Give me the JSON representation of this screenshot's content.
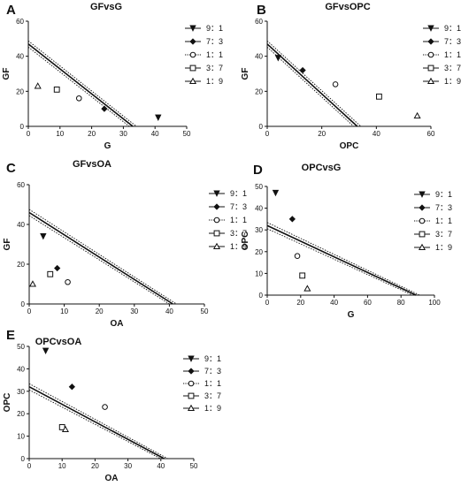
{
  "chart_data": [
    {
      "type": "scatter",
      "panel": "A",
      "title": "GFvsG",
      "xlabel": "G",
      "ylabel": "GF",
      "xlim": [
        0,
        50
      ],
      "ylim": [
        0,
        60
      ],
      "xticks": [
        0,
        10,
        20,
        30,
        40,
        50
      ],
      "yticks": [
        0,
        20,
        40,
        60
      ],
      "line": {
        "x": [
          0,
          33
        ],
        "y": [
          47,
          0
        ]
      },
      "series": [
        {
          "name": "9：1",
          "marker": "triangle-down",
          "x": [
            41
          ],
          "y": [
            5
          ]
        },
        {
          "name": "7：3",
          "marker": "diamond",
          "x": [
            24
          ],
          "y": [
            10
          ]
        },
        {
          "name": "1：1",
          "marker": "circle-open",
          "x": [
            16
          ],
          "y": [
            16
          ]
        },
        {
          "name": "3：7",
          "marker": "square-open",
          "x": [
            9
          ],
          "y": [
            21
          ]
        },
        {
          "name": "1：9",
          "marker": "triangle-open",
          "x": [
            3
          ],
          "y": [
            23
          ]
        }
      ]
    },
    {
      "type": "scatter",
      "panel": "B",
      "title": "GFvsOPC",
      "xlabel": "OPC",
      "ylabel": "GF",
      "xlim": [
        0,
        60
      ],
      "ylim": [
        0,
        60
      ],
      "xticks": [
        0,
        20,
        40,
        60
      ],
      "yticks": [
        0,
        20,
        40,
        60
      ],
      "line": {
        "x": [
          0,
          33
        ],
        "y": [
          47,
          0
        ]
      },
      "series": [
        {
          "name": "9：1",
          "marker": "triangle-down",
          "x": [
            4
          ],
          "y": [
            39
          ]
        },
        {
          "name": "7：3",
          "marker": "diamond",
          "x": [
            13
          ],
          "y": [
            32
          ]
        },
        {
          "name": "1：1",
          "marker": "circle-open",
          "x": [
            25
          ],
          "y": [
            24
          ]
        },
        {
          "name": "3：7",
          "marker": "square-open",
          "x": [
            41
          ],
          "y": [
            17
          ]
        },
        {
          "name": "1：9",
          "marker": "triangle-open",
          "x": [
            55
          ],
          "y": [
            6
          ]
        }
      ]
    },
    {
      "type": "scatter",
      "panel": "C",
      "title": "GFvsOA",
      "xlabel": "OA",
      "ylabel": "GF",
      "xlim": [
        0,
        50
      ],
      "ylim": [
        0,
        60
      ],
      "xticks": [
        0,
        10,
        20,
        30,
        40,
        50
      ],
      "yticks": [
        0,
        20,
        40,
        60
      ],
      "line": {
        "x": [
          0,
          41
        ],
        "y": [
          46,
          0
        ]
      },
      "series": [
        {
          "name": "9：1",
          "marker": "triangle-down",
          "x": [
            4
          ],
          "y": [
            34
          ]
        },
        {
          "name": "7：3",
          "marker": "diamond",
          "x": [
            8
          ],
          "y": [
            18
          ]
        },
        {
          "name": "1：1",
          "marker": "circle-open",
          "x": [
            11
          ],
          "y": [
            11
          ]
        },
        {
          "name": "3：7",
          "marker": "square-open",
          "x": [
            6
          ],
          "y": [
            15
          ]
        },
        {
          "name": "1：9",
          "marker": "triangle-open",
          "x": [
            1
          ],
          "y": [
            10
          ]
        }
      ]
    },
    {
      "type": "scatter",
      "panel": "D",
      "title": "OPCvsG",
      "xlabel": "G",
      "ylabel": "OPC",
      "xlim": [
        0,
        100
      ],
      "ylim": [
        0,
        50
      ],
      "xticks": [
        0,
        20,
        40,
        60,
        80,
        100
      ],
      "yticks": [
        0,
        10,
        20,
        30,
        40,
        50
      ],
      "line": {
        "x": [
          0,
          89
        ],
        "y": [
          32,
          0
        ]
      },
      "series": [
        {
          "name": "9：1",
          "marker": "triangle-down",
          "x": [
            5
          ],
          "y": [
            47
          ]
        },
        {
          "name": "7：3",
          "marker": "diamond",
          "x": [
            15
          ],
          "y": [
            35
          ]
        },
        {
          "name": "1：1",
          "marker": "circle-open",
          "x": [
            18
          ],
          "y": [
            18
          ]
        },
        {
          "name": "3：7",
          "marker": "square-open",
          "x": [
            21
          ],
          "y": [
            9
          ]
        },
        {
          "name": "1：9",
          "marker": "triangle-open",
          "x": [
            24
          ],
          "y": [
            3
          ]
        }
      ]
    },
    {
      "type": "scatter",
      "panel": "E",
      "title": "OPCvsOA",
      "xlabel": "OA",
      "ylabel": "OPC",
      "xlim": [
        0,
        50
      ],
      "ylim": [
        0,
        50
      ],
      "xticks": [
        0,
        10,
        20,
        30,
        40,
        50
      ],
      "yticks": [
        0,
        10,
        20,
        30,
        40,
        50
      ],
      "line": {
        "x": [
          0,
          41
        ],
        "y": [
          32,
          0
        ]
      },
      "series": [
        {
          "name": "9：1",
          "marker": "triangle-down",
          "x": [
            5
          ],
          "y": [
            48
          ]
        },
        {
          "name": "7：3",
          "marker": "diamond",
          "x": [
            13
          ],
          "y": [
            32
          ]
        },
        {
          "name": "1：1",
          "marker": "circle-open",
          "x": [
            23
          ],
          "y": [
            23
          ]
        },
        {
          "name": "3：7",
          "marker": "square-open",
          "x": [
            10
          ],
          "y": [
            14
          ]
        },
        {
          "name": "1：9",
          "marker": "triangle-open",
          "x": [
            11
          ],
          "y": [
            13
          ]
        }
      ]
    }
  ]
}
